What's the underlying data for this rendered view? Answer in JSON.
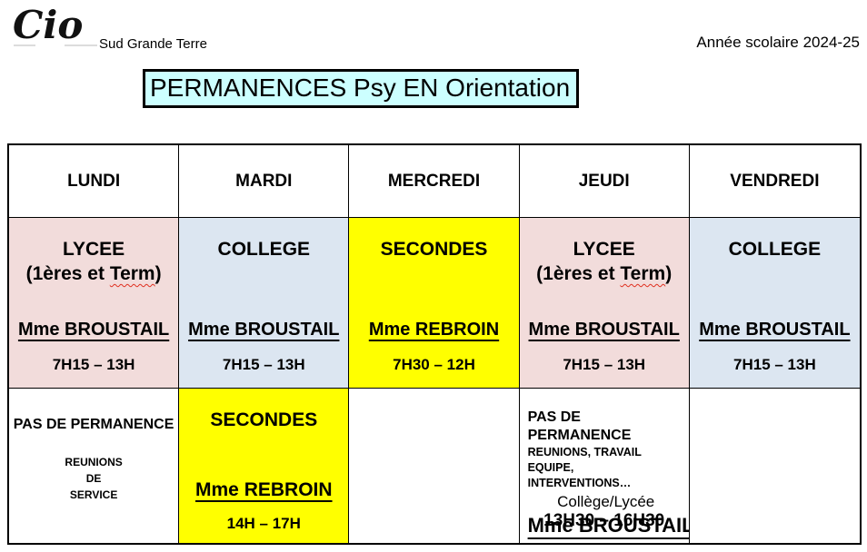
{
  "page": {
    "logo_text": "Cio",
    "logo_sublabel": "Sud Grande Terre",
    "school_year": "Année scolaire 2024-25",
    "title": "PERMANENCES Psy EN Orientation"
  },
  "colors": {
    "lycee_pink": "#F2DCDB",
    "college_blue": "#DCE6F1",
    "secondes_yellow": "#FFFF00",
    "title_background": "#CCFFFF",
    "border_black": "#000000",
    "spellcheck_red": "#E03020"
  },
  "table": {
    "days": [
      "LUNDI",
      "MARDI",
      "MERCREDI",
      "JEUDI",
      "VENDREDI"
    ],
    "morning": [
      {
        "audience": "LYCEE",
        "detail_pre": "(1ères et ",
        "detail_mark": "Term",
        "detail_post": ")",
        "counselor": "Mme BROUSTAIL",
        "hours": "7H15 – 13H"
      },
      {
        "audience": "COLLEGE",
        "counselor": "Mme BROUSTAIL",
        "hours": "7H15 – 13H"
      },
      {
        "audience": "SECONDES",
        "counselor": "Mme REBROIN",
        "hours": "7H30 – 12H"
      },
      {
        "audience": "LYCEE",
        "detail_pre": "(1ères et ",
        "detail_mark": "Term",
        "detail_post": ")",
        "counselor": "Mme BROUSTAIL",
        "hours": "7H15 – 13H"
      },
      {
        "audience": "COLLEGE",
        "counselor": "Mme BROUSTAIL",
        "hours": "7H15 – 13H"
      }
    ],
    "afternoon": {
      "monday": {
        "heading": "PAS DE PERMANENCE",
        "note_line1": "REUNIONS",
        "note_line2": "DE",
        "note_line3": "SERVICE"
      },
      "tuesday": {
        "audience": "SECONDES",
        "counselor": "Mme REBROIN",
        "hours": "14H – 17H"
      },
      "thursday": {
        "heading": "PAS DE PERMANENCE",
        "note_line1": "REUNIONS, TRAVAIL EQUIPE,",
        "note_line2": "INTERVENTIONS…",
        "location": "Collège/Lycée",
        "counselor": "Mme BROUSTAIL",
        "hours": "13H30 – 16H30"
      }
    }
  }
}
